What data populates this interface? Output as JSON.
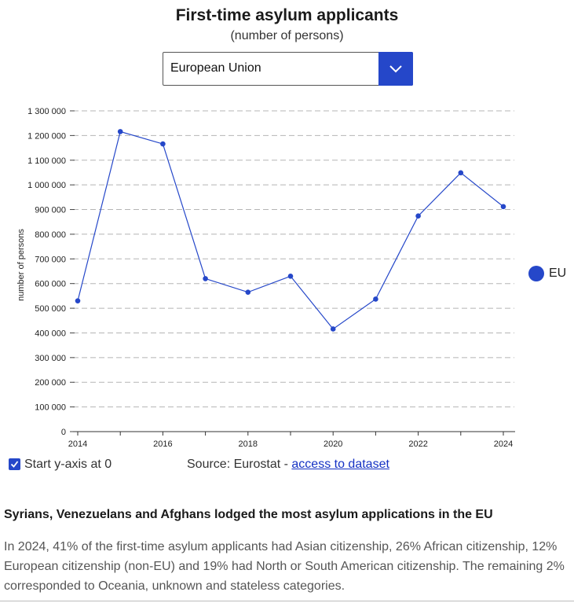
{
  "header": {
    "title": "First-time asylum applicants",
    "subtitle": "(number of persons)"
  },
  "selector": {
    "value": "European Union",
    "icon": "chevron-down-icon",
    "accent_color": "#2547c9"
  },
  "chart_data": {
    "type": "line",
    "title": "First-time asylum applicants",
    "subtitle": "(number of persons)",
    "ylabel": "number of persons",
    "xlabel": "",
    "x": [
      2014,
      2015,
      2016,
      2017,
      2018,
      2019,
      2020,
      2021,
      2022,
      2023,
      2024
    ],
    "x_tick_labels": [
      "2014",
      "2016",
      "2018",
      "2020",
      "2022",
      "2024"
    ],
    "y_tick_labels": [
      "0",
      "100 000",
      "200 000",
      "300 000",
      "400 000",
      "500 000",
      "600 000",
      "700 000",
      "800 000",
      "900 000",
      "1 000 000",
      "1 100 000",
      "1 200 000",
      "1 300 000"
    ],
    "ylim": [
      0,
      1300000
    ],
    "xlim": [
      2014,
      2024
    ],
    "grid": "horizontal dashed",
    "legend_position": "right",
    "series": [
      {
        "name": "EU",
        "color": "#2547c9",
        "values": [
          530000,
          1216000,
          1166000,
          620000,
          565000,
          630000,
          416000,
          537000,
          874000,
          1049000,
          912000
        ]
      }
    ]
  },
  "legend": {
    "label": "EU",
    "color": "#2547c9"
  },
  "controls": {
    "checkbox_label": "Start y-axis at 0",
    "checkbox_checked": true,
    "source_prefix": "Source: Eurostat - ",
    "source_link": "access to dataset"
  },
  "article": {
    "heading": "Syrians, Venezuelans and Afghans lodged the most asylum applications in the EU",
    "paragraph": "In 2024, 41% of the first-time asylum applicants had Asian citizenship, 26% African citizenship, 12% European citizenship (non-EU) and 19% had North or South American citizenship. The remaining 2% corresponded to Oceania, unknown and stateless categories."
  }
}
